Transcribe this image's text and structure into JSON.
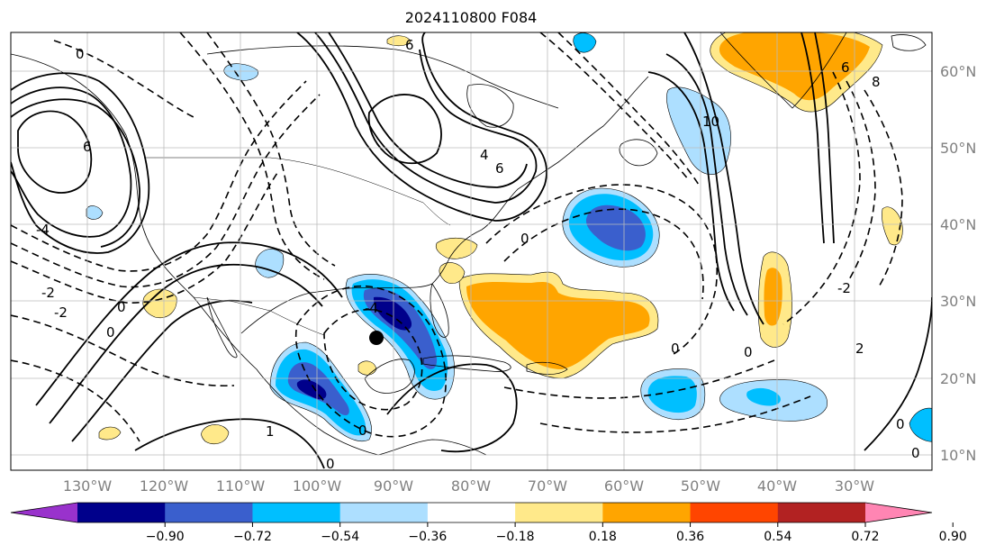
{
  "map": {
    "title": "2024110800 F084",
    "projection": "plate-carree",
    "extent": {
      "lon_min": -140,
      "lon_max": -18,
      "lat_min": 8,
      "lat_max": 65
    },
    "lon_labels": [
      "130°W",
      "120°W",
      "110°W",
      "100°W",
      "90°W",
      "80°W",
      "70°W",
      "60°W",
      "50°W",
      "40°W",
      "30°W"
    ],
    "lat_labels": [
      "10°N",
      "20°N",
      "30°N",
      "40°N",
      "50°N",
      "60°N"
    ],
    "gridlines": true,
    "marker": {
      "lon": -92,
      "lat": 25,
      "symbol": "filled-circle"
    }
  },
  "colorbar": {
    "tick_labels": [
      "−0.90",
      "−0.72",
      "−0.54",
      "−0.36",
      "−0.18",
      "0.18",
      "0.36",
      "0.54",
      "0.72",
      "0.90"
    ],
    "colors": [
      "#9932CC",
      "#00008B",
      "#3A5FCD",
      "#00BFFF",
      "#ADDFFF",
      "#FFFFFF",
      "#FFE98A",
      "#FFA500",
      "#FF4500",
      "#B22222",
      "#FF85B3"
    ],
    "extend": "both"
  },
  "contour_labels": [
    "0",
    "-2",
    "-4",
    "6",
    "4",
    "-1",
    "1",
    "2",
    "8",
    "10"
  ]
}
